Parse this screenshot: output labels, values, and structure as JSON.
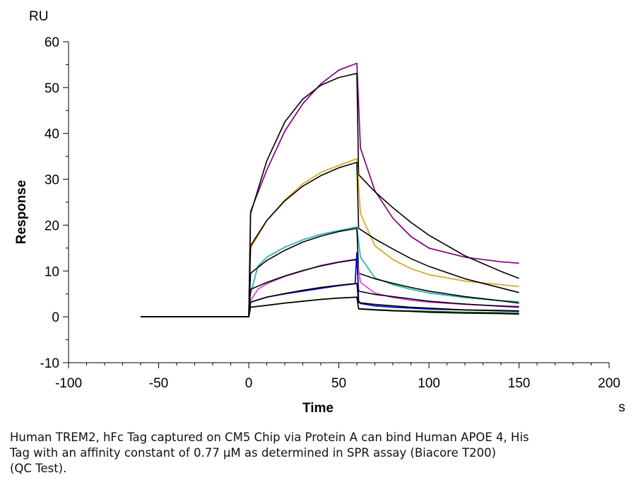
{
  "chart_data": {
    "type": "line",
    "title": "",
    "xlabel": "Time",
    "ylabel": "Response",
    "y_unit": "RU",
    "x_unit": "s",
    "xlim": [
      -100,
      200
    ],
    "ylim": [
      -10,
      60
    ],
    "x_ticks": [
      -100,
      -50,
      0,
      50,
      100,
      150,
      200
    ],
    "y_ticks": [
      -10,
      0,
      10,
      20,
      30,
      40,
      50,
      60
    ],
    "grid": false,
    "legend": "none",
    "series": [
      {
        "kind": "measured",
        "color": "#800080",
        "x": [
          -60,
          -30,
          0,
          1,
          10,
          20,
          30,
          40,
          50,
          60,
          62,
          70,
          80,
          90,
          100,
          120,
          140,
          150
        ],
        "y": [
          0,
          0,
          0,
          23,
          32,
          40.5,
          46.5,
          50.8,
          53.8,
          55.3,
          36.8,
          27.5,
          21.5,
          17.5,
          15,
          13,
          12,
          11.7
        ]
      },
      {
        "kind": "fit",
        "color": "#000000",
        "x": [
          -60,
          -30,
          0,
          1,
          10,
          20,
          30,
          40,
          50,
          60,
          61,
          70,
          80,
          90,
          100,
          120,
          140,
          150
        ],
        "y": [
          0,
          0,
          0,
          22.5,
          34,
          42.5,
          47.5,
          50.5,
          52.2,
          53.1,
          31,
          27.3,
          23.8,
          20.6,
          17.8,
          13.3,
          9.9,
          8.4
        ]
      },
      {
        "kind": "measured",
        "color": "#DAA520",
        "x": [
          -60,
          0,
          1,
          10,
          20,
          30,
          40,
          50,
          60,
          62,
          70,
          80,
          90,
          100,
          120,
          140,
          150
        ],
        "y": [
          0,
          0,
          15,
          21,
          25.5,
          29,
          31.5,
          33,
          34.5,
          22.5,
          15.5,
          12.5,
          10.5,
          9.2,
          7.8,
          7,
          6.6
        ]
      },
      {
        "kind": "fit",
        "color": "#000000",
        "x": [
          -60,
          0,
          1,
          10,
          20,
          30,
          40,
          50,
          60,
          61,
          70,
          80,
          90,
          100,
          120,
          140,
          150
        ],
        "y": [
          0,
          0,
          15.5,
          21,
          25.3,
          28.5,
          30.8,
          32.5,
          33.7,
          19.3,
          17,
          14.8,
          12.7,
          11,
          8.3,
          6.3,
          5.3
        ]
      },
      {
        "kind": "measured",
        "color": "#20B2AA",
        "x": [
          -60,
          0,
          1,
          5,
          10,
          20,
          30,
          40,
          50,
          60,
          62,
          70,
          80,
          90,
          100,
          120,
          140,
          150
        ],
        "y": [
          0,
          0,
          5,
          11,
          13,
          15.2,
          16.8,
          18,
          18.8,
          19.6,
          13,
          8.5,
          7,
          6,
          5.2,
          4.2,
          3.5,
          3.3
        ]
      },
      {
        "kind": "fit",
        "color": "#000000",
        "x": [
          -60,
          0,
          1,
          10,
          20,
          30,
          40,
          50,
          60,
          61,
          70,
          80,
          90,
          100,
          120,
          140,
          150
        ],
        "y": [
          0,
          0,
          9.5,
          12.3,
          14.5,
          16.3,
          17.6,
          18.6,
          19.3,
          9.5,
          8.3,
          7.3,
          6.4,
          5.6,
          4.4,
          3.5,
          3
        ]
      },
      {
        "kind": "measured",
        "color": "#E040E0",
        "x": [
          -60,
          0,
          1,
          5,
          10,
          20,
          30,
          40,
          50,
          60,
          62,
          70,
          80,
          90,
          100,
          120,
          140,
          150
        ],
        "y": [
          0,
          0,
          3.5,
          6,
          7.2,
          8.8,
          10,
          11.2,
          12,
          12.6,
          7.5,
          5.2,
          4.2,
          3.6,
          3.2,
          2.7,
          2.4,
          2.3
        ]
      },
      {
        "kind": "fit",
        "color": "#000000",
        "x": [
          -60,
          0,
          1,
          10,
          20,
          30,
          40,
          50,
          60,
          61,
          70,
          80,
          90,
          100,
          120,
          140,
          150
        ],
        "y": [
          0,
          0,
          6,
          7.5,
          8.9,
          10.1,
          11.1,
          11.9,
          12.5,
          5.6,
          4.9,
          4.4,
          3.9,
          3.4,
          2.8,
          2.3,
          2.1
        ]
      },
      {
        "kind": "measured",
        "color": "#0000CD",
        "x": [
          -60,
          0,
          1,
          10,
          20,
          30,
          40,
          50,
          59,
          60,
          61,
          62,
          70,
          80,
          90,
          100,
          120,
          140,
          150
        ],
        "y": [
          0,
          0,
          3.2,
          4.3,
          5,
          5.6,
          6.2,
          6.8,
          7.2,
          14,
          3.5,
          2.9,
          2.4,
          2.1,
          1.9,
          1.7,
          1.5,
          1.4,
          1.3
        ]
      },
      {
        "kind": "fit",
        "color": "#000000",
        "x": [
          -60,
          0,
          1,
          10,
          20,
          30,
          40,
          50,
          60,
          61,
          70,
          80,
          90,
          100,
          120,
          140,
          150
        ],
        "y": [
          0,
          0,
          3.2,
          4.3,
          5.1,
          5.8,
          6.4,
          6.9,
          7.3,
          3.1,
          2.7,
          2.4,
          2.1,
          1.9,
          1.5,
          1.3,
          1.2
        ]
      },
      {
        "kind": "measured",
        "color": "#006400",
        "x": [
          -60,
          0,
          1,
          10,
          20,
          30,
          40,
          50,
          60,
          61,
          70,
          80,
          90,
          100,
          120,
          140,
          150
        ],
        "y": [
          0,
          0,
          2.1,
          2.5,
          3,
          3.4,
          3.8,
          4.1,
          4.3,
          1.8,
          1.6,
          1.4,
          1.3,
          1.2,
          1,
          0.9,
          0.8
        ]
      },
      {
        "kind": "fit",
        "color": "#000000",
        "x": [
          -60,
          0,
          1,
          10,
          20,
          30,
          40,
          50,
          60,
          61,
          70,
          80,
          90,
          100,
          120,
          140,
          150
        ],
        "y": [
          0,
          0,
          2.1,
          2.5,
          3,
          3.4,
          3.8,
          4.1,
          4.3,
          1.7,
          1.5,
          1.3,
          1.2,
          1,
          0.8,
          0.7,
          0.6
        ]
      }
    ]
  },
  "caption": {
    "lines": [
      "Human TREM2, hFc Tag captured on CM5 Chip via Protein A can bind Human APOE 4, His",
      "Tag with an affinity constant of 0.77 μM as determined in SPR assay (Biacore T200)",
      "(QC Test)."
    ]
  }
}
